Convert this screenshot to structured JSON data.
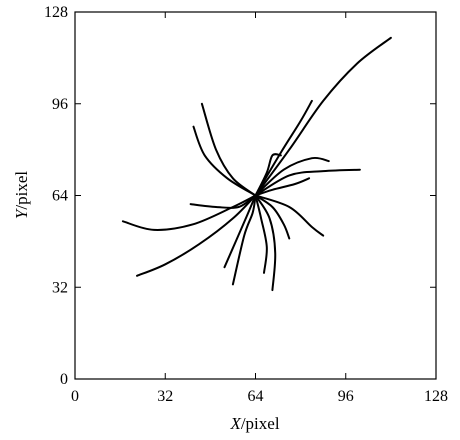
{
  "chart_data": {
    "type": "line",
    "title": "",
    "xlabel": {
      "var": "X",
      "unit": "/pixel"
    },
    "ylabel": {
      "var": "Y",
      "unit": "/pixel"
    },
    "xlim": [
      0,
      128
    ],
    "ylim": [
      0,
      128
    ],
    "xticks": [
      0,
      32,
      64,
      96,
      128
    ],
    "yticks": [
      0,
      32,
      64,
      96,
      128
    ],
    "grid": false,
    "legend": "none",
    "line_color": "#000000",
    "series": [
      {
        "points": [
          [
            64,
            64
          ],
          [
            76,
            80
          ],
          [
            88,
            97
          ],
          [
            100,
            110
          ],
          [
            112,
            119
          ]
        ]
      },
      {
        "points": [
          [
            64,
            64
          ],
          [
            76,
            71
          ],
          [
            88,
            72.5
          ],
          [
            101,
            73
          ]
        ]
      },
      {
        "points": [
          [
            64,
            64
          ],
          [
            74,
            73
          ],
          [
            84,
            77
          ],
          [
            90,
            76
          ]
        ]
      },
      {
        "points": [
          [
            64,
            64
          ],
          [
            73,
            79
          ],
          [
            80,
            90
          ],
          [
            84,
            97
          ]
        ]
      },
      {
        "points": [
          [
            64,
            64
          ],
          [
            68,
            72
          ],
          [
            70,
            78
          ],
          [
            73,
            78
          ]
        ]
      },
      {
        "points": [
          [
            64,
            64
          ],
          [
            70,
            66
          ],
          [
            78,
            68
          ],
          [
            83,
            70
          ]
        ]
      },
      {
        "points": [
          [
            64,
            64
          ],
          [
            76,
            60
          ],
          [
            84,
            53
          ],
          [
            88,
            50
          ]
        ]
      },
      {
        "points": [
          [
            64,
            64
          ],
          [
            70,
            60
          ],
          [
            74,
            54
          ],
          [
            76,
            49
          ]
        ]
      },
      {
        "points": [
          [
            64,
            64
          ],
          [
            69,
            56
          ],
          [
            71,
            44
          ],
          [
            70,
            31
          ]
        ]
      },
      {
        "points": [
          [
            64,
            64
          ],
          [
            66,
            56
          ],
          [
            68,
            46
          ],
          [
            67,
            37
          ]
        ]
      },
      {
        "points": [
          [
            64,
            64
          ],
          [
            63,
            58
          ],
          [
            60,
            50
          ],
          [
            56,
            33
          ]
        ]
      },
      {
        "points": [
          [
            64,
            64
          ],
          [
            61,
            57
          ],
          [
            57,
            48
          ],
          [
            53,
            39
          ]
        ]
      },
      {
        "points": [
          [
            64,
            64
          ],
          [
            56,
            60
          ],
          [
            42,
            54
          ],
          [
            28,
            52
          ],
          [
            17,
            55
          ]
        ]
      },
      {
        "points": [
          [
            64,
            64
          ],
          [
            56,
            56
          ],
          [
            44,
            47
          ],
          [
            32,
            40
          ],
          [
            22,
            36
          ]
        ]
      },
      {
        "points": [
          [
            64,
            64
          ],
          [
            58,
            60
          ],
          [
            50,
            60
          ],
          [
            41,
            61
          ]
        ]
      },
      {
        "points": [
          [
            64,
            64
          ],
          [
            56,
            70
          ],
          [
            50,
            80
          ],
          [
            45,
            96
          ]
        ]
      },
      {
        "points": [
          [
            64,
            64
          ],
          [
            54,
            70
          ],
          [
            46,
            78
          ],
          [
            42,
            88
          ]
        ]
      }
    ]
  }
}
